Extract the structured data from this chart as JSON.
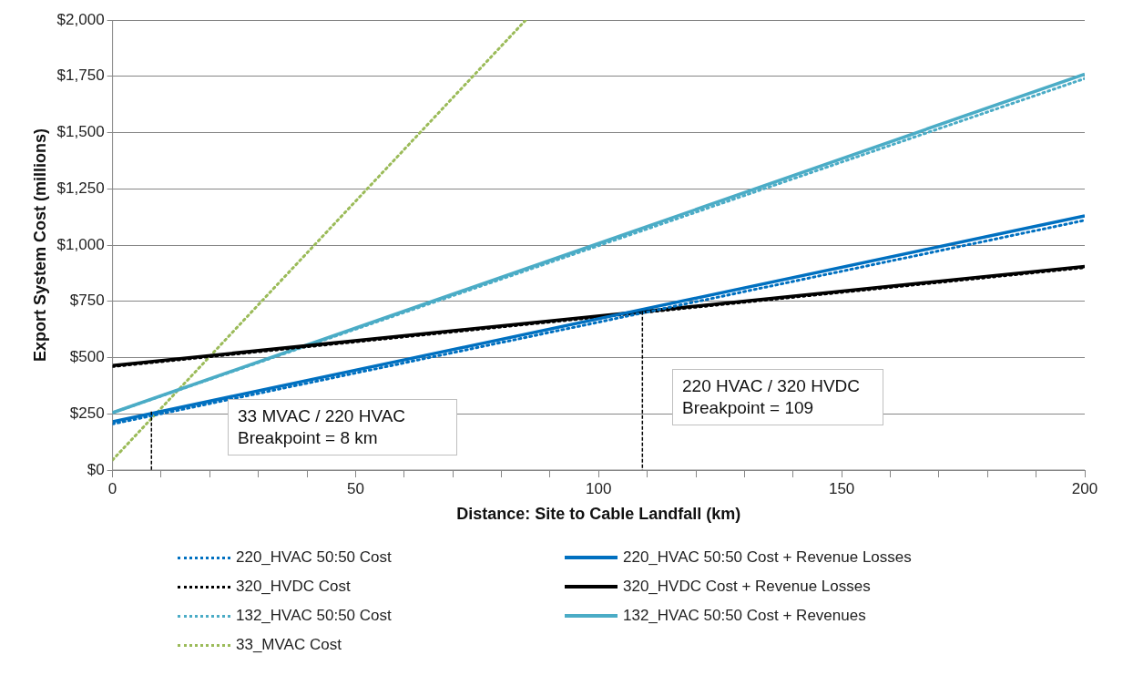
{
  "chart_data": {
    "type": "line",
    "xlabel": "Distance: Site to Cable Landfall (km)",
    "ylabel": "Export System Cost (millions)",
    "xlim": [
      0,
      200
    ],
    "xticks": [
      0,
      {
        "value": 10,
        "label": null
      },
      {
        "value": 20,
        "label": null
      },
      {
        "value": 30,
        "label": null
      },
      {
        "value": 40,
        "label": null
      },
      50,
      {
        "value": 60,
        "label": null
      },
      {
        "value": 70,
        "label": null
      },
      {
        "value": 80,
        "label": null
      },
      {
        "value": 90,
        "label": null
      },
      100,
      {
        "value": 110,
        "label": null
      },
      {
        "value": 120,
        "label": null
      },
      {
        "value": 130,
        "label": null
      },
      {
        "value": 140,
        "label": null
      },
      150,
      {
        "value": 160,
        "label": null
      },
      {
        "value": 170,
        "label": null
      },
      {
        "value": 180,
        "label": null
      },
      {
        "value": 190,
        "label": null
      },
      200
    ],
    "ylim": [
      0,
      2000
    ],
    "yticks": [
      {
        "value": 0,
        "label": "$0"
      },
      {
        "value": 250,
        "label": "$250"
      },
      {
        "value": 500,
        "label": "$500"
      },
      {
        "value": 750,
        "label": "$750"
      },
      {
        "value": 1000,
        "label": "$1,000"
      },
      {
        "value": 1250,
        "label": "$1,250"
      },
      {
        "value": 1500,
        "label": "$1,500"
      },
      {
        "value": 1750,
        "label": "$1,750"
      },
      {
        "value": 2000,
        "label": "$2,000"
      }
    ],
    "grid": "y",
    "legend": "bottom",
    "marker": "none",
    "series": [
      {
        "name": "220_HVAC 50:50 Cost",
        "color": "#0070c0",
        "line_style": "dotted",
        "x": [
          0,
          200
        ],
        "values": [
          205,
          1110
        ]
      },
      {
        "name": "220_HVAC 50:50 Cost + Revenue Losses",
        "color": "#0070c0",
        "line_style": "solid",
        "x": [
          0,
          200
        ],
        "values": [
          215,
          1130
        ]
      },
      {
        "name": "320_HVDC Cost",
        "color": "#000000",
        "line_style": "dotted",
        "x": [
          0,
          200
        ],
        "values": [
          460,
          900
        ]
      },
      {
        "name": "320_HVDC Cost + Revenue Losses",
        "color": "#000000",
        "line_style": "solid",
        "x": [
          0,
          200
        ],
        "values": [
          465,
          905
        ]
      },
      {
        "name": "132_HVAC 50:50 Cost",
        "color": "#4bacc6",
        "line_style": "dotted",
        "x": [
          0,
          200
        ],
        "values": [
          255,
          1740
        ]
      },
      {
        "name": "132_HVAC 50:50 Cost + Revenues",
        "color": "#4bacc6",
        "line_style": "solid",
        "x": [
          0,
          200
        ],
        "values": [
          255,
          1760
        ]
      },
      {
        "name": "33_MVAC Cost",
        "color": "#9bbb59",
        "line_style": "dotted",
        "x": [
          0,
          85
        ],
        "values": [
          45,
          2000
        ]
      },
      {
        "color": "#000000",
        "line_style": "dashed",
        "x": [
          8,
          8
        ],
        "values": [
          260,
          0
        ]
      },
      {
        "color": "#000000",
        "line_style": "dashed",
        "x": [
          109,
          109
        ],
        "values": [
          705,
          0
        ]
      }
    ],
    "annotations": [
      "33 MVAC / 220 HVAC Breakpoint = 8 km",
      "220 HVAC / 320 HVDC Breakpoint = 109"
    ]
  }
}
